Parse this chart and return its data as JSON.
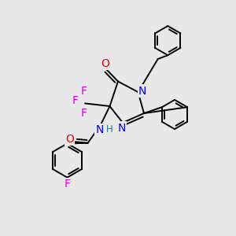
{
  "bg_color": "#e8e8e8",
  "atom_colors": {
    "N": "#0000ee",
    "O": "#ee0000",
    "F": "#dd00dd",
    "H": "#008888",
    "C": "#000000"
  },
  "bond_color": "#000000",
  "bond_width": 1.4,
  "font_size_atoms": 10,
  "font_size_small": 8.5
}
